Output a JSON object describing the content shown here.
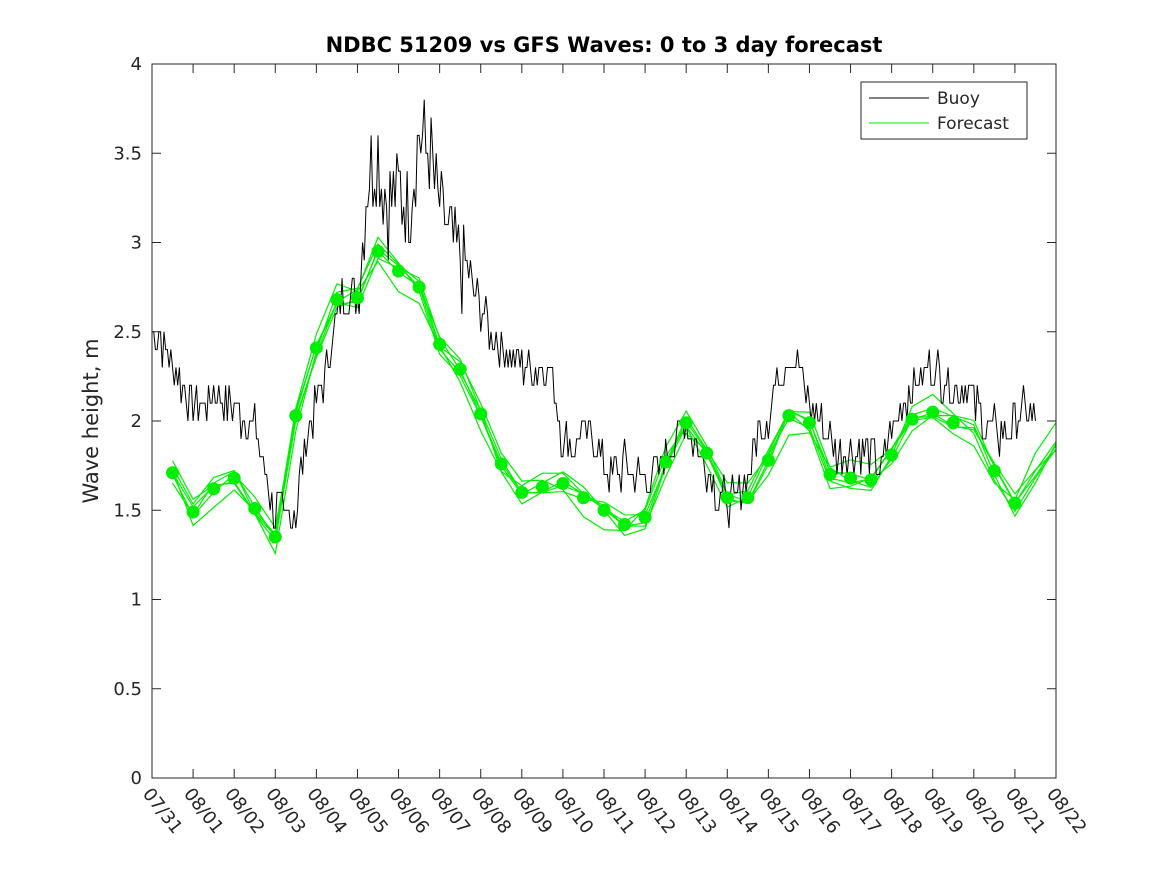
{
  "chart_data": {
    "type": "line",
    "title": "NDBC 51209 vs GFS Waves: 0 to 3 day forecast",
    "xlabel": "",
    "ylabel": "Wave height, m",
    "xlim": [
      0,
      22
    ],
    "ylim": [
      0,
      4
    ],
    "y_ticks": [
      0,
      0.5,
      1,
      1.5,
      2,
      2.5,
      3,
      3.5,
      4
    ],
    "y_tick_labels": [
      "0",
      "0.5",
      "1",
      "1.5",
      "2",
      "2.5",
      "3",
      "3.5",
      "4"
    ],
    "x_ticks": [
      0,
      1,
      2,
      3,
      4,
      5,
      6,
      7,
      8,
      9,
      10,
      11,
      12,
      13,
      14,
      15,
      16,
      17,
      18,
      19,
      20,
      21,
      22
    ],
    "x_tick_labels": [
      "07/31",
      "08/01",
      "08/02",
      "08/03",
      "08/04",
      "08/05",
      "08/06",
      "08/07",
      "08/08",
      "08/09",
      "08/10",
      "08/11",
      "08/12",
      "08/13",
      "08/14",
      "08/15",
      "08/16",
      "08/17",
      "08/18",
      "08/19",
      "08/20",
      "08/21",
      "08/22"
    ],
    "legend": {
      "position": "top-right",
      "entries": [
        "Buoy",
        "Forecast"
      ]
    },
    "colors": {
      "buoy": "#000000",
      "forecast": "#00ee00",
      "axis": "#262626"
    },
    "series": [
      {
        "name": "Buoy",
        "x": [
          0,
          0.25,
          0.5,
          0.75,
          1,
          1.25,
          1.5,
          1.75,
          2,
          2.25,
          2.5,
          2.75,
          3,
          3.25,
          3.5,
          3.75,
          4,
          4.25,
          4.5,
          4.75,
          5,
          5.25,
          5.5,
          5.75,
          6,
          6.25,
          6.5,
          6.75,
          7,
          7.25,
          7.5,
          7.75,
          8,
          8.25,
          8.5,
          8.75,
          9,
          9.25,
          9.5,
          9.75,
          10,
          10.25,
          10.5,
          10.75,
          11,
          11.25,
          11.5,
          11.75,
          12,
          12.25,
          12.5,
          12.75,
          13,
          13.25,
          13.5,
          13.75,
          14,
          14.25,
          14.5,
          14.75,
          15,
          15.25,
          15.5,
          15.75,
          16,
          16.25,
          16.5,
          16.75,
          17,
          17.25,
          17.5,
          17.75,
          18,
          18.25,
          18.5,
          18.75,
          19,
          19.25,
          19.5,
          19.75,
          20,
          20.25,
          20.5,
          20.75,
          21,
          21.25,
          21.5
        ],
        "values": [
          2.5,
          2.45,
          2.3,
          2.2,
          2.1,
          2.1,
          2.15,
          2.1,
          2.1,
          2.0,
          1.95,
          1.7,
          1.5,
          1.45,
          1.5,
          1.9,
          2.1,
          2.3,
          2.6,
          2.75,
          2.7,
          3.4,
          3.5,
          3.2,
          3.3,
          3.2,
          3.6,
          3.5,
          3.2,
          3.0,
          2.9,
          2.8,
          2.6,
          2.5,
          2.4,
          2.4,
          2.3,
          2.3,
          2.3,
          2.25,
          1.9,
          1.85,
          1.95,
          1.9,
          1.75,
          1.7,
          1.75,
          1.7,
          1.65,
          1.7,
          1.8,
          1.9,
          2.0,
          1.85,
          1.75,
          1.6,
          1.55,
          1.55,
          1.7,
          1.95,
          2.05,
          2.25,
          2.4,
          2.3,
          2.1,
          2.0,
          1.9,
          1.8,
          1.85,
          1.85,
          1.8,
          1.75,
          1.95,
          2.05,
          2.2,
          2.25,
          2.3,
          2.25,
          2.2,
          2.2,
          2.1,
          2.0,
          1.95,
          1.9,
          2.0,
          2.05,
          2.0
        ]
      },
      {
        "name": "Forecast",
        "x": [
          0.5,
          1,
          1.5,
          2,
          2.5,
          3,
          3.5,
          4,
          4.5,
          5,
          5.5,
          6,
          6.5,
          7,
          7.5,
          8,
          8.5,
          9,
          9.5,
          10,
          10.5,
          11,
          11.5,
          12,
          12.5,
          13,
          13.5,
          14,
          14.5,
          15,
          15.5,
          16,
          16.5,
          17,
          17.5,
          18,
          18.5,
          19,
          19.5,
          20,
          20.5,
          21,
          21.5,
          22
        ],
        "values": [
          1.71,
          1.49,
          1.62,
          1.68,
          1.51,
          1.35,
          2.03,
          2.41,
          2.68,
          2.69,
          2.95,
          2.84,
          2.75,
          2.43,
          2.29,
          2.04,
          1.76,
          1.6,
          1.63,
          1.65,
          1.57,
          1.5,
          1.42,
          1.46,
          1.77,
          1.99,
          1.82,
          1.57,
          1.57,
          1.78,
          2.03,
          1.99,
          1.7,
          1.68,
          1.67,
          1.81,
          2.01,
          2.05,
          1.99,
          1.95,
          1.72,
          1.54,
          1.72,
          1.88
        ]
      }
    ],
    "daily_markers": {
      "x": [
        0.5,
        1,
        1.5,
        2,
        2.5,
        3,
        3.5,
        4,
        4.5,
        5,
        5.5,
        6,
        6.5,
        7,
        7.5,
        8,
        8.5,
        9,
        9.5,
        10,
        10.5,
        11,
        11.5,
        12,
        12.5,
        13,
        13.5,
        14,
        14.5,
        15,
        15.5,
        16,
        16.5,
        17,
        17.5,
        18,
        18.5,
        19,
        19.5,
        20.5,
        21
      ],
      "values": [
        1.71,
        1.49,
        1.62,
        1.68,
        1.51,
        1.35,
        2.03,
        2.41,
        2.68,
        2.69,
        2.95,
        2.84,
        2.75,
        2.43,
        2.29,
        2.04,
        1.76,
        1.6,
        1.63,
        1.65,
        1.57,
        1.5,
        1.42,
        1.46,
        1.77,
        1.99,
        1.82,
        1.57,
        1.57,
        1.78,
        2.03,
        1.99,
        1.7,
        1.68,
        1.67,
        1.81,
        2.01,
        2.05,
        1.99,
        1.72,
        1.54
      ]
    }
  }
}
